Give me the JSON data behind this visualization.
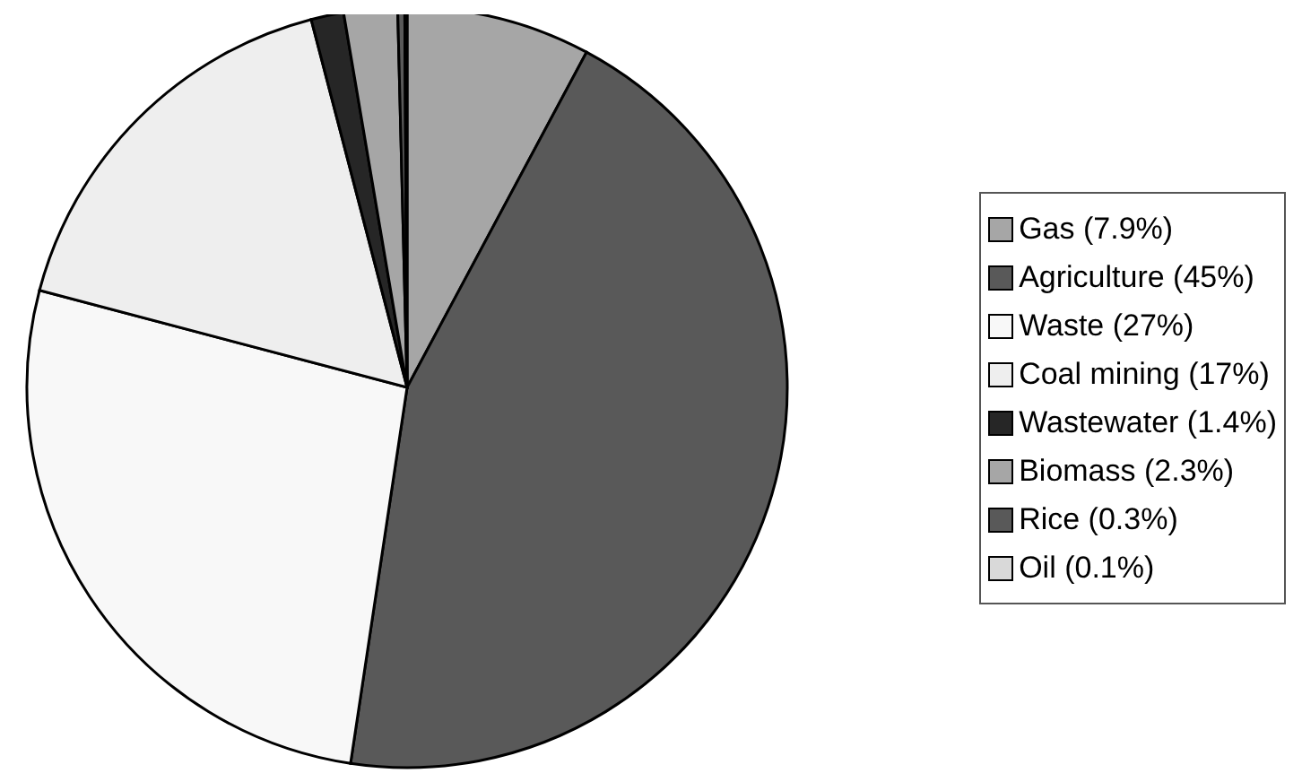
{
  "chart_data": {
    "type": "pie",
    "categories": [
      "Gas (7.9%)",
      "Agriculture (45%)",
      "Waste (27%)",
      "Coal mining (17%)",
      "Wastewater (1.4%)",
      "Biomass (2.3%)",
      "Rice (0.3%)",
      "Oil (0.1%)"
    ],
    "values": [
      7.9,
      45,
      27,
      17,
      1.4,
      2.3,
      0.3,
      0.1
    ],
    "colors": [
      "#a6a6a6",
      "#595959",
      "#f8f8f8",
      "#eeeeee",
      "#262626",
      "#a6a6a6",
      "#595959",
      "#d9d9d9"
    ],
    "legend": "right"
  }
}
